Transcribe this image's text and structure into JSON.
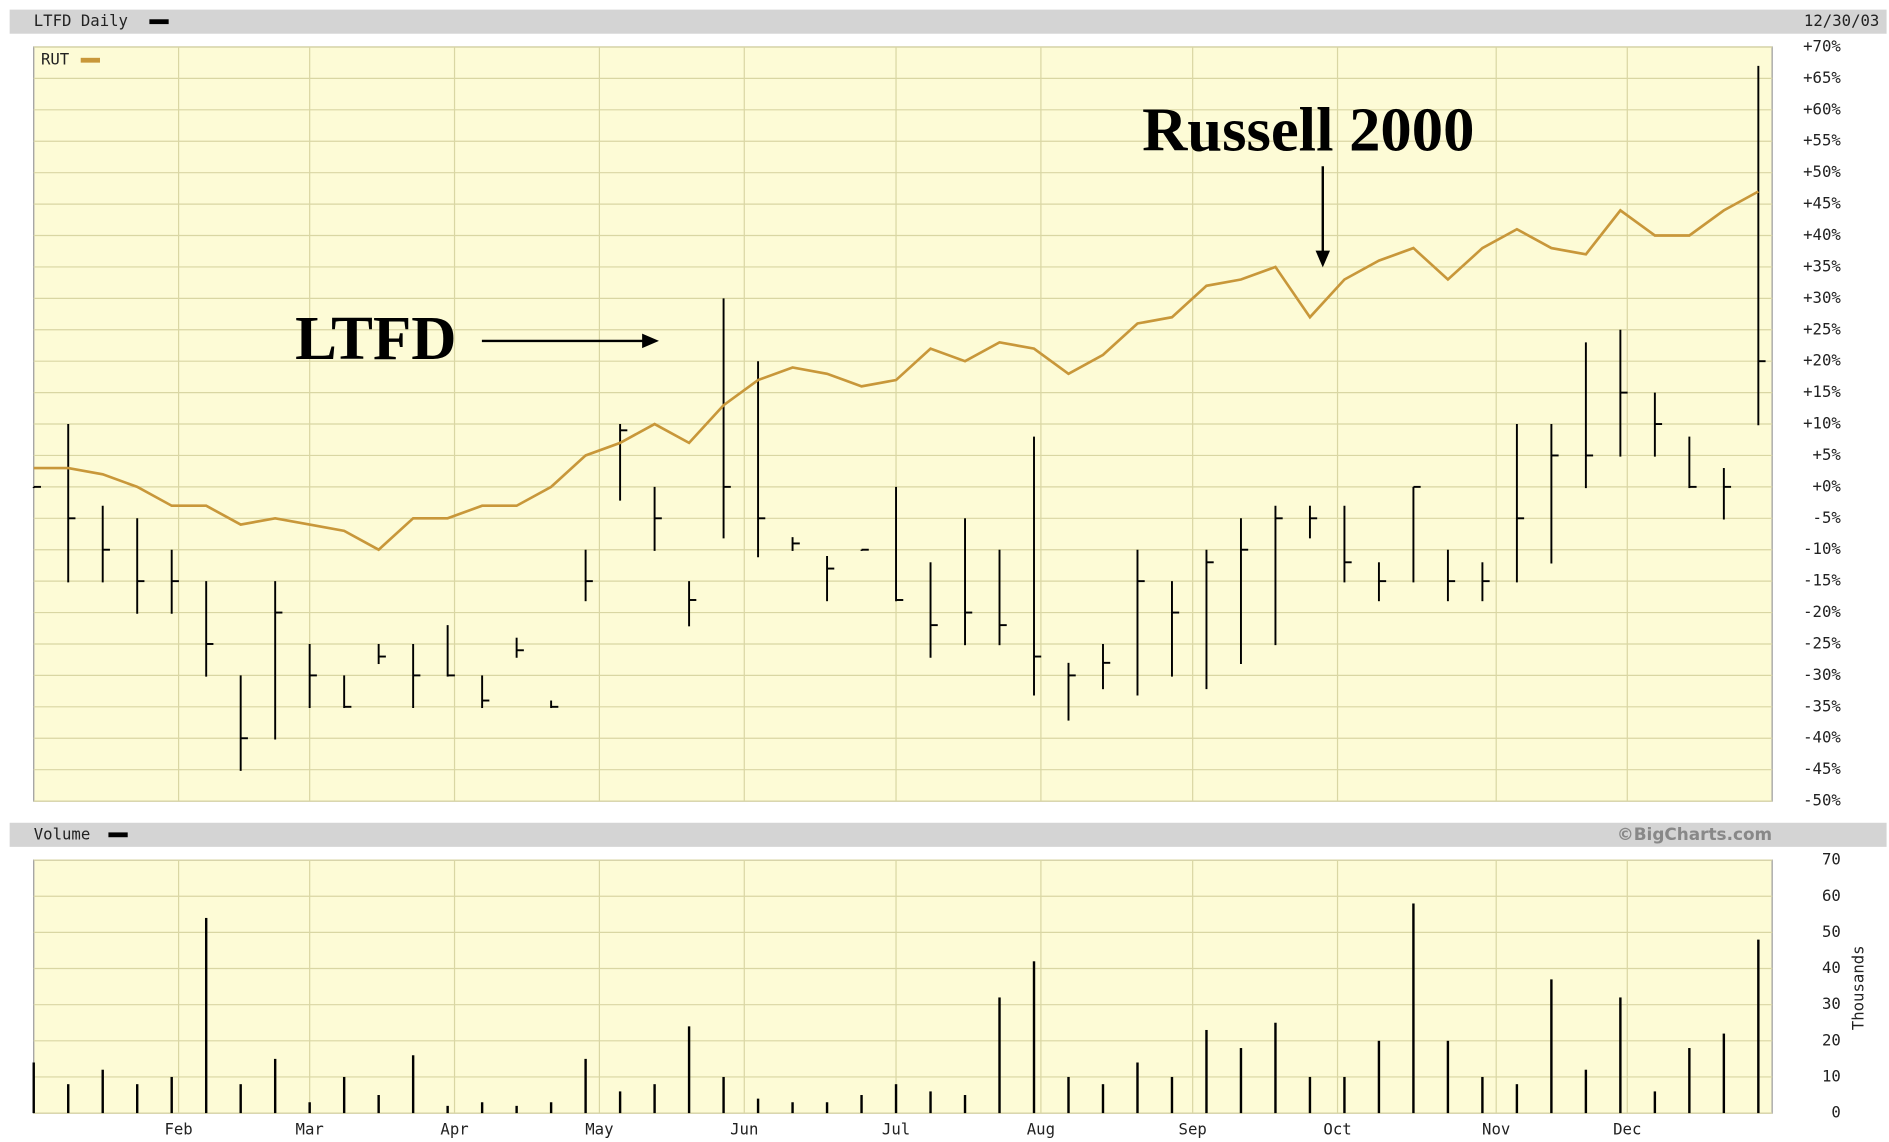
{
  "chart_data": [
    {
      "type": "ohlc",
      "title": "LTFD Daily",
      "date": "12/30/03",
      "legend": "RUT",
      "annotations": [
        "LTFD",
        "Russell 2000"
      ],
      "xlim": [
        0,
        252
      ],
      "xticks": [
        {
          "value": 21,
          "label": "Feb"
        },
        {
          "value": 40,
          "label": "Mar"
        },
        {
          "value": 61,
          "label": "Apr"
        },
        {
          "value": 82,
          "label": "May"
        },
        {
          "value": 103,
          "label": "Jun"
        },
        {
          "value": 125,
          "label": "Jul"
        },
        {
          "value": 146,
          "label": "Aug"
        },
        {
          "value": 168,
          "label": "Sep"
        },
        {
          "value": 189,
          "label": "Oct"
        },
        {
          "value": 212,
          "label": "Nov"
        },
        {
          "value": 231,
          "label": "Dec"
        }
      ],
      "ylim": [
        -50,
        70
      ],
      "yticks": [
        {
          "value": 70,
          "label": "+70%"
        },
        {
          "value": 65,
          "label": "+65%"
        },
        {
          "value": 60,
          "label": "+60%"
        },
        {
          "value": 55,
          "label": "+55%"
        },
        {
          "value": 50,
          "label": "+50%"
        },
        {
          "value": 45,
          "label": "+45%"
        },
        {
          "value": 40,
          "label": "+40%"
        },
        {
          "value": 35,
          "label": "+35%"
        },
        {
          "value": 30,
          "label": "+30%"
        },
        {
          "value": 25,
          "label": "+25%"
        },
        {
          "value": 20,
          "label": "+20%"
        },
        {
          "value": 15,
          "label": "+15%"
        },
        {
          "value": 10,
          "label": "+10%"
        },
        {
          "value": 5,
          "label": "+5%"
        },
        {
          "value": 0,
          "label": "+0%"
        },
        {
          "value": -5,
          "label": "-5%"
        },
        {
          "value": -10,
          "label": "-10%"
        },
        {
          "value": -15,
          "label": "-15%"
        },
        {
          "value": -20,
          "label": "-20%"
        },
        {
          "value": -25,
          "label": "-25%"
        },
        {
          "value": -30,
          "label": "-30%"
        },
        {
          "value": -35,
          "label": "-35%"
        },
        {
          "value": -40,
          "label": "-40%"
        },
        {
          "value": -45,
          "label": "-45%"
        },
        {
          "value": -50,
          "label": "-50%"
        }
      ],
      "grid": true,
      "x": [
        0,
        5,
        10,
        15,
        20,
        25,
        30,
        35,
        40,
        45,
        50,
        55,
        60,
        65,
        70,
        75,
        80,
        85,
        90,
        95,
        100,
        105,
        110,
        115,
        120,
        125,
        130,
        135,
        140,
        145,
        150,
        155,
        160,
        165,
        170,
        175,
        180,
        185,
        190,
        195,
        200,
        205,
        210,
        215,
        220,
        225,
        230,
        235,
        240,
        245,
        250
      ],
      "series": [
        {
          "name": "LTFD",
          "color": "#000000",
          "high": [
            0,
            10,
            -3,
            -5,
            -10,
            -15,
            -30,
            -15,
            -25,
            -30,
            -25,
            -25,
            -22,
            -30,
            -24,
            -34,
            -10,
            10,
            0,
            -15,
            30,
            20,
            -8,
            -11,
            -10,
            0,
            -12,
            -5,
            -10,
            8,
            -28,
            -25,
            -10,
            -15,
            -10,
            -5,
            -3,
            -3,
            -3,
            -12,
            0,
            -10,
            -12,
            10,
            10,
            23,
            25,
            15,
            8,
            3,
            67
          ],
          "low": [
            0,
            -15,
            -15,
            -20,
            -20,
            -30,
            -45,
            -40,
            -35,
            -35,
            -28,
            -35,
            -30,
            -35,
            -27,
            -35,
            -18,
            -2,
            -10,
            -22,
            -8,
            -11,
            -10,
            -18,
            -10,
            -18,
            -27,
            -25,
            -25,
            -33,
            -37,
            -32,
            -33,
            -30,
            -32,
            -28,
            -25,
            -8,
            -15,
            -18,
            -15,
            -18,
            -18,
            -15,
            -12,
            0,
            5,
            5,
            0,
            -5,
            10
          ],
          "close": [
            0,
            -5,
            -10,
            -15,
            -15,
            -25,
            -40,
            -20,
            -30,
            -35,
            -27,
            -30,
            -30,
            -34,
            -26,
            -35,
            -15,
            9,
            -5,
            -18,
            0,
            -5,
            -9,
            -13,
            -10,
            -18,
            -22,
            -20,
            -22,
            -27,
            -30,
            -28,
            -15,
            -20,
            -12,
            -10,
            -5,
            -5,
            -12,
            -15,
            0,
            -15,
            -15,
            -5,
            5,
            5,
            15,
            10,
            0,
            0,
            20
          ]
        },
        {
          "name": "RUT",
          "color": "#c8973a",
          "values": [
            3,
            3,
            2,
            0,
            -3,
            -3,
            -6,
            -5,
            -6,
            -7,
            -10,
            -5,
            -5,
            -3,
            -3,
            0,
            5,
            7,
            10,
            7,
            13,
            17,
            19,
            18,
            16,
            17,
            22,
            20,
            23,
            22,
            18,
            21,
            26,
            27,
            32,
            33,
            35,
            27,
            33,
            36,
            38,
            33,
            38,
            41,
            38,
            37,
            44,
            40,
            40,
            44,
            47
          ]
        }
      ]
    },
    {
      "type": "bar",
      "title": "Volume",
      "source": "©BigCharts.com",
      "ylabel": "Thousands",
      "color": "#000000",
      "xlim": [
        0,
        252
      ],
      "xticks": [
        {
          "value": 21,
          "label": "Feb"
        },
        {
          "value": 40,
          "label": "Mar"
        },
        {
          "value": 61,
          "label": "Apr"
        },
        {
          "value": 82,
          "label": "May"
        },
        {
          "value": 103,
          "label": "Jun"
        },
        {
          "value": 125,
          "label": "Jul"
        },
        {
          "value": 146,
          "label": "Aug"
        },
        {
          "value": 168,
          "label": "Sep"
        },
        {
          "value": 189,
          "label": "Oct"
        },
        {
          "value": 212,
          "label": "Nov"
        },
        {
          "value": 231,
          "label": "Dec"
        }
      ],
      "ylim": [
        0,
        70
      ],
      "yticks": [
        0,
        10,
        20,
        30,
        40,
        50,
        60,
        70
      ],
      "grid": true,
      "x": [
        0,
        5,
        10,
        15,
        20,
        25,
        30,
        35,
        40,
        45,
        50,
        55,
        60,
        65,
        70,
        75,
        80,
        85,
        90,
        95,
        100,
        105,
        110,
        115,
        120,
        125,
        130,
        135,
        140,
        145,
        150,
        155,
        160,
        165,
        170,
        175,
        180,
        185,
        190,
        195,
        200,
        205,
        210,
        215,
        220,
        225,
        230,
        235,
        240,
        245,
        250
      ],
      "values": [
        14,
        8,
        12,
        8,
        10,
        54,
        8,
        15,
        3,
        10,
        5,
        16,
        2,
        3,
        2,
        3,
        15,
        6,
        8,
        24,
        10,
        4,
        3,
        3,
        5,
        8,
        6,
        5,
        32,
        42,
        10,
        8,
        14,
        10,
        23,
        18,
        25,
        10,
        10,
        20,
        58,
        20,
        10,
        8,
        37,
        12,
        32,
        6,
        18,
        22,
        48
      ]
    }
  ]
}
